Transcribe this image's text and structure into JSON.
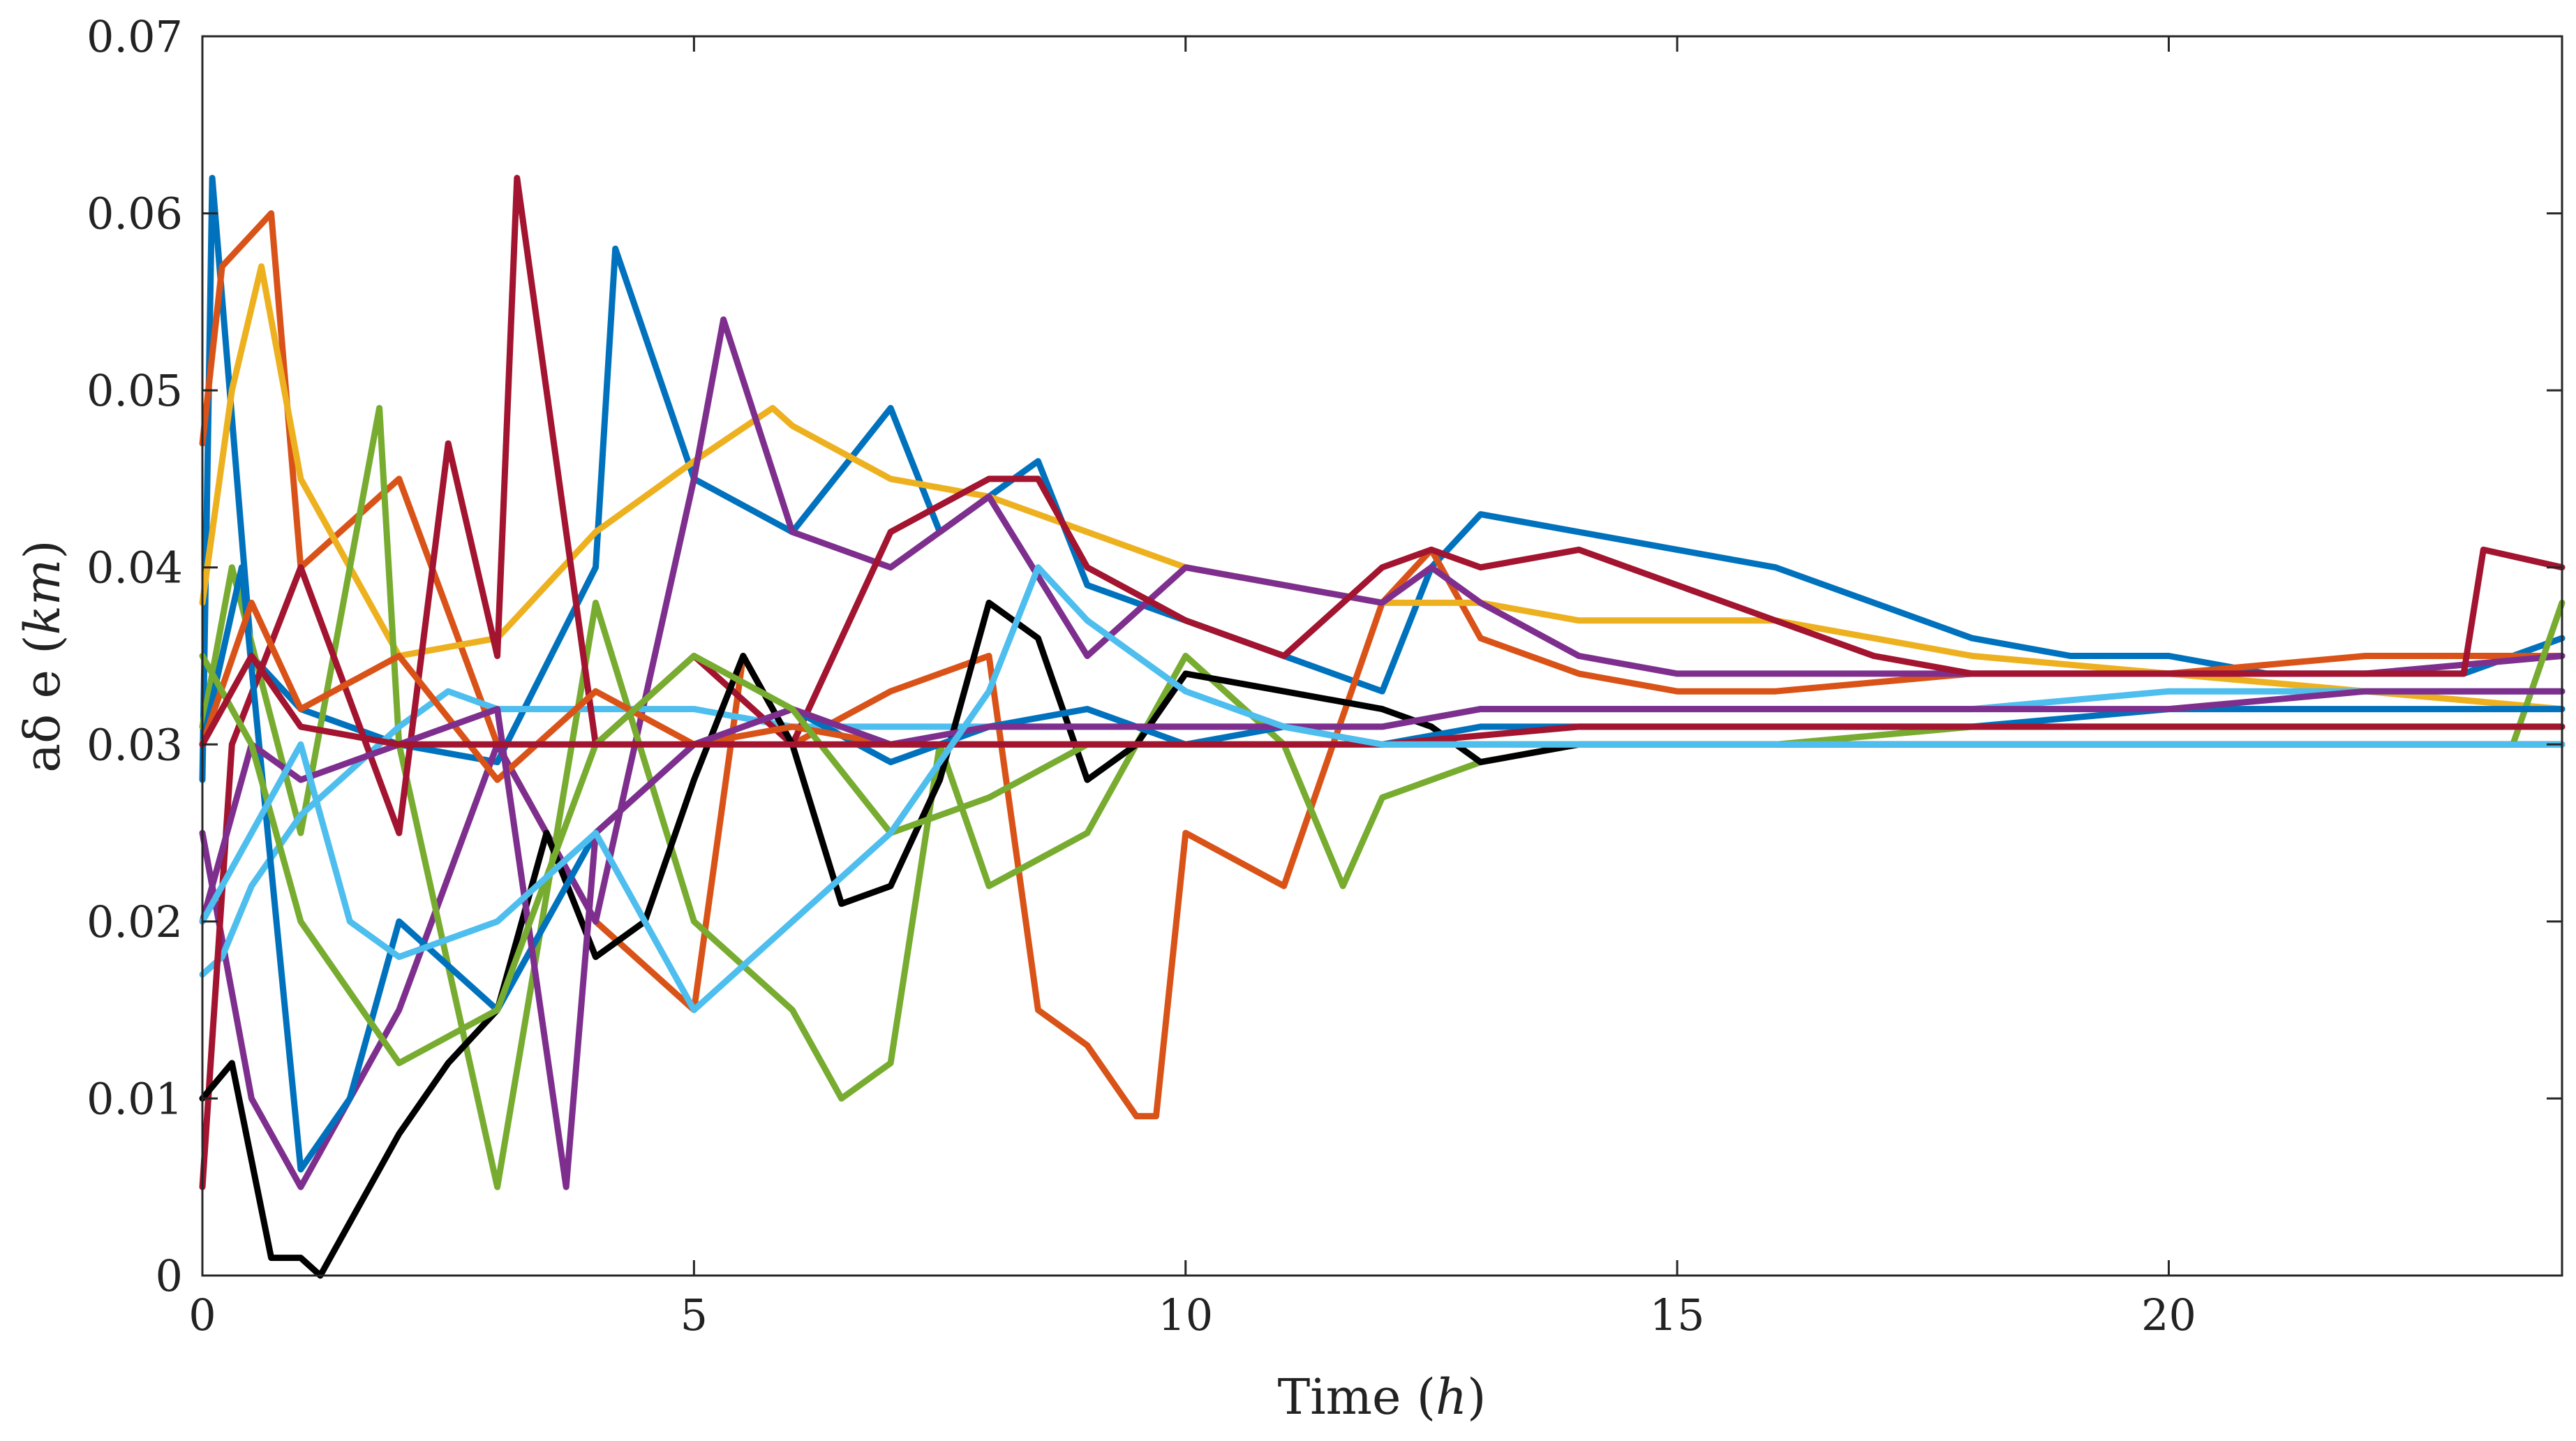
{
  "chart_data": {
    "type": "line",
    "title": "",
    "xlabel": "Time",
    "xlabel_unit": "h",
    "ylabel": "aδ e",
    "ylabel_unit": "km",
    "xlim": [
      0,
      24
    ],
    "ylim": [
      0,
      0.07
    ],
    "xticks": [
      0,
      5,
      10,
      15,
      20
    ],
    "xtick_labels": [
      "0",
      "5",
      "10",
      "15",
      "20"
    ],
    "yticks": [
      0,
      0.01,
      0.02,
      0.03,
      0.04,
      0.05,
      0.06,
      0.07
    ],
    "ytick_labels": [
      "0",
      "0.01",
      "0.02",
      "0.03",
      "0.04",
      "0.05",
      "0.06",
      "0.07"
    ],
    "grid": false,
    "legend": "none",
    "series": [
      {
        "name": "blue-1",
        "color": "#0072BD",
        "x": [
          0,
          0.1,
          0.5,
          1,
          2,
          3,
          4,
          4.2,
          5,
          6,
          7,
          7.5,
          8,
          8.5,
          9,
          10,
          11,
          12,
          12.5,
          13,
          14,
          15,
          16,
          17,
          18,
          19,
          20,
          21,
          22,
          23,
          23.5,
          24
        ],
        "y": [
          0.028,
          0.062,
          0.035,
          0.032,
          0.03,
          0.029,
          0.04,
          0.058,
          0.045,
          0.042,
          0.049,
          0.042,
          0.044,
          0.046,
          0.039,
          0.037,
          0.035,
          0.033,
          0.04,
          0.043,
          0.042,
          0.041,
          0.04,
          0.038,
          0.036,
          0.035,
          0.035,
          0.034,
          0.034,
          0.034,
          0.035,
          0.036
        ]
      },
      {
        "name": "orange-1",
        "color": "#D95319",
        "x": [
          0,
          0.2,
          0.7,
          1,
          2,
          3,
          4,
          5,
          5.5,
          6,
          7,
          8,
          8.5,
          9,
          9.5,
          9.7,
          10,
          11,
          12,
          12.5,
          13,
          14,
          15,
          16,
          18,
          20,
          22,
          23.5,
          24
        ],
        "y": [
          0.047,
          0.057,
          0.06,
          0.04,
          0.045,
          0.03,
          0.02,
          0.015,
          0.035,
          0.03,
          0.033,
          0.035,
          0.015,
          0.013,
          0.009,
          0.009,
          0.025,
          0.022,
          0.038,
          0.041,
          0.036,
          0.034,
          0.033,
          0.033,
          0.034,
          0.034,
          0.035,
          0.035,
          0.035
        ]
      },
      {
        "name": "yellow-1",
        "color": "#EDB120",
        "x": [
          0,
          0.3,
          0.6,
          1,
          2,
          3,
          4,
          5,
          5.8,
          6,
          7,
          8,
          9,
          10,
          11,
          12,
          13,
          14,
          15,
          16,
          17,
          18,
          20,
          22,
          24
        ],
        "y": [
          0.038,
          0.05,
          0.057,
          0.045,
          0.035,
          0.036,
          0.042,
          0.046,
          0.049,
          0.048,
          0.045,
          0.044,
          0.042,
          0.04,
          0.039,
          0.038,
          0.038,
          0.037,
          0.037,
          0.037,
          0.036,
          0.035,
          0.034,
          0.033,
          0.032
        ]
      },
      {
        "name": "purple-1",
        "color": "#7E2F8E",
        "x": [
          0,
          0.5,
          1,
          2,
          3,
          4,
          5,
          5.3,
          6,
          7,
          8,
          9,
          10,
          11,
          12,
          12.5,
          13,
          14,
          15,
          16,
          18,
          20,
          22,
          24
        ],
        "y": [
          0.025,
          0.01,
          0.005,
          0.015,
          0.03,
          0.02,
          0.045,
          0.054,
          0.042,
          0.04,
          0.044,
          0.035,
          0.04,
          0.039,
          0.038,
          0.04,
          0.038,
          0.035,
          0.034,
          0.034,
          0.034,
          0.034,
          0.034,
          0.035
        ]
      },
      {
        "name": "green-1",
        "color": "#77AC30",
        "x": [
          0,
          0.3,
          1,
          1.8,
          2,
          3,
          4,
          5,
          6,
          6.5,
          7,
          7.5,
          8,
          9,
          10,
          11,
          11.6,
          12,
          13,
          14,
          15,
          16,
          18,
          20,
          22,
          23.5,
          24
        ],
        "y": [
          0.031,
          0.04,
          0.025,
          0.049,
          0.03,
          0.005,
          0.038,
          0.02,
          0.015,
          0.01,
          0.012,
          0.03,
          0.022,
          0.025,
          0.035,
          0.03,
          0.022,
          0.027,
          0.029,
          0.03,
          0.03,
          0.03,
          0.03,
          0.03,
          0.03,
          0.03,
          0.038
        ]
      },
      {
        "name": "skyblue-1",
        "color": "#4DBEEE",
        "x": [
          0,
          0.2,
          0.5,
          1,
          2,
          2.5,
          3,
          4,
          5,
          6,
          7,
          8,
          9,
          10,
          11,
          12,
          13,
          14,
          15,
          16,
          18,
          20,
          22,
          24
        ],
        "y": [
          0.017,
          0.018,
          0.022,
          0.026,
          0.031,
          0.033,
          0.032,
          0.032,
          0.032,
          0.031,
          0.031,
          0.031,
          0.031,
          0.031,
          0.031,
          0.031,
          0.032,
          0.032,
          0.032,
          0.032,
          0.032,
          0.033,
          0.033,
          0.033
        ]
      },
      {
        "name": "crimson-1",
        "color": "#A2142F",
        "x": [
          0,
          0.3,
          1,
          2,
          2.5,
          3,
          3.2,
          4,
          5,
          6,
          7,
          8,
          8.5,
          9,
          10,
          11,
          12,
          12.5,
          13,
          14,
          15,
          16,
          17,
          18,
          20,
          22,
          23,
          23.2,
          24
        ],
        "y": [
          0.005,
          0.03,
          0.04,
          0.025,
          0.047,
          0.035,
          0.062,
          0.03,
          0.035,
          0.03,
          0.042,
          0.045,
          0.045,
          0.04,
          0.037,
          0.035,
          0.04,
          0.041,
          0.04,
          0.041,
          0.039,
          0.037,
          0.035,
          0.034,
          0.034,
          0.034,
          0.034,
          0.041,
          0.04
        ]
      },
      {
        "name": "black-1",
        "color": "#000000",
        "x": [
          0,
          0.3,
          0.7,
          1,
          1.2,
          2,
          2.5,
          3,
          3.5,
          4,
          4.5,
          5,
          5.5,
          6,
          6.5,
          7,
          7.5,
          8,
          8.5,
          9,
          9.5,
          10,
          11,
          12,
          12.5,
          13,
          14,
          15,
          16,
          18,
          20,
          22,
          24
        ],
        "y": [
          0.01,
          0.012,
          0.001,
          0.001,
          0.0,
          0.008,
          0.012,
          0.015,
          0.025,
          0.018,
          0.02,
          0.028,
          0.035,
          0.03,
          0.021,
          0.022,
          0.028,
          0.038,
          0.036,
          0.028,
          0.03,
          0.034,
          0.033,
          0.032,
          0.031,
          0.029,
          0.03,
          0.03,
          0.03,
          0.03,
          0.03,
          0.03,
          0.03
        ]
      },
      {
        "name": "blue-2",
        "color": "#0072BD",
        "x": [
          0,
          0.4,
          1,
          1.5,
          2,
          3,
          4,
          5,
          6,
          7,
          8,
          9,
          10,
          11,
          12,
          13,
          14,
          16,
          18,
          20,
          22,
          24
        ],
        "y": [
          0.03,
          0.04,
          0.006,
          0.01,
          0.02,
          0.015,
          0.025,
          0.03,
          0.032,
          0.029,
          0.031,
          0.032,
          0.03,
          0.031,
          0.03,
          0.031,
          0.031,
          0.031,
          0.031,
          0.032,
          0.032,
          0.032
        ]
      },
      {
        "name": "orange-2",
        "color": "#D95319",
        "x": [
          0,
          0.5,
          1,
          2,
          3,
          4,
          5,
          6,
          7,
          8,
          9,
          10,
          11,
          12,
          14,
          16,
          18,
          20,
          22,
          24
        ],
        "y": [
          0.03,
          0.038,
          0.032,
          0.035,
          0.028,
          0.033,
          0.03,
          0.031,
          0.03,
          0.03,
          0.03,
          0.03,
          0.03,
          0.03,
          0.03,
          0.03,
          0.03,
          0.03,
          0.03,
          0.03
        ]
      },
      {
        "name": "purple-2",
        "color": "#7E2F8E",
        "x": [
          0,
          0.5,
          1,
          2,
          3,
          3.7,
          4,
          5,
          6,
          7,
          8,
          9,
          10,
          11,
          12,
          13,
          14,
          16,
          18,
          20,
          22,
          24
        ],
        "y": [
          0.02,
          0.03,
          0.028,
          0.03,
          0.032,
          0.005,
          0.025,
          0.03,
          0.032,
          0.03,
          0.031,
          0.031,
          0.031,
          0.031,
          0.031,
          0.032,
          0.032,
          0.032,
          0.032,
          0.032,
          0.033,
          0.033
        ]
      },
      {
        "name": "green-2",
        "color": "#77AC30",
        "x": [
          0,
          0.5,
          1,
          2,
          3,
          4,
          5,
          6,
          7,
          8,
          9,
          10,
          11,
          12,
          14,
          16,
          18,
          20,
          22,
          24
        ],
        "y": [
          0.035,
          0.03,
          0.02,
          0.012,
          0.015,
          0.03,
          0.035,
          0.032,
          0.025,
          0.027,
          0.03,
          0.03,
          0.03,
          0.03,
          0.03,
          0.03,
          0.031,
          0.031,
          0.031,
          0.031
        ]
      },
      {
        "name": "crimson-2",
        "color": "#A2142F",
        "x": [
          0,
          0.5,
          1,
          2,
          3,
          4,
          5,
          6,
          7,
          8,
          9,
          10,
          11,
          12,
          14,
          16,
          18,
          20,
          22,
          24
        ],
        "y": [
          0.03,
          0.035,
          0.031,
          0.03,
          0.03,
          0.03,
          0.03,
          0.03,
          0.03,
          0.03,
          0.03,
          0.03,
          0.03,
          0.03,
          0.031,
          0.031,
          0.031,
          0.031,
          0.031,
          0.031
        ]
      },
      {
        "name": "skyblue-2",
        "color": "#4DBEEE",
        "x": [
          0,
          0.5,
          1,
          1.5,
          2,
          3,
          4,
          5,
          6,
          7,
          8,
          8.5,
          9,
          10,
          11,
          12,
          14,
          16,
          18,
          20,
          22,
          24
        ],
        "y": [
          0.02,
          0.025,
          0.03,
          0.02,
          0.018,
          0.02,
          0.025,
          0.015,
          0.02,
          0.025,
          0.033,
          0.04,
          0.037,
          0.033,
          0.031,
          0.03,
          0.03,
          0.03,
          0.03,
          0.03,
          0.03,
          0.03
        ]
      }
    ]
  }
}
